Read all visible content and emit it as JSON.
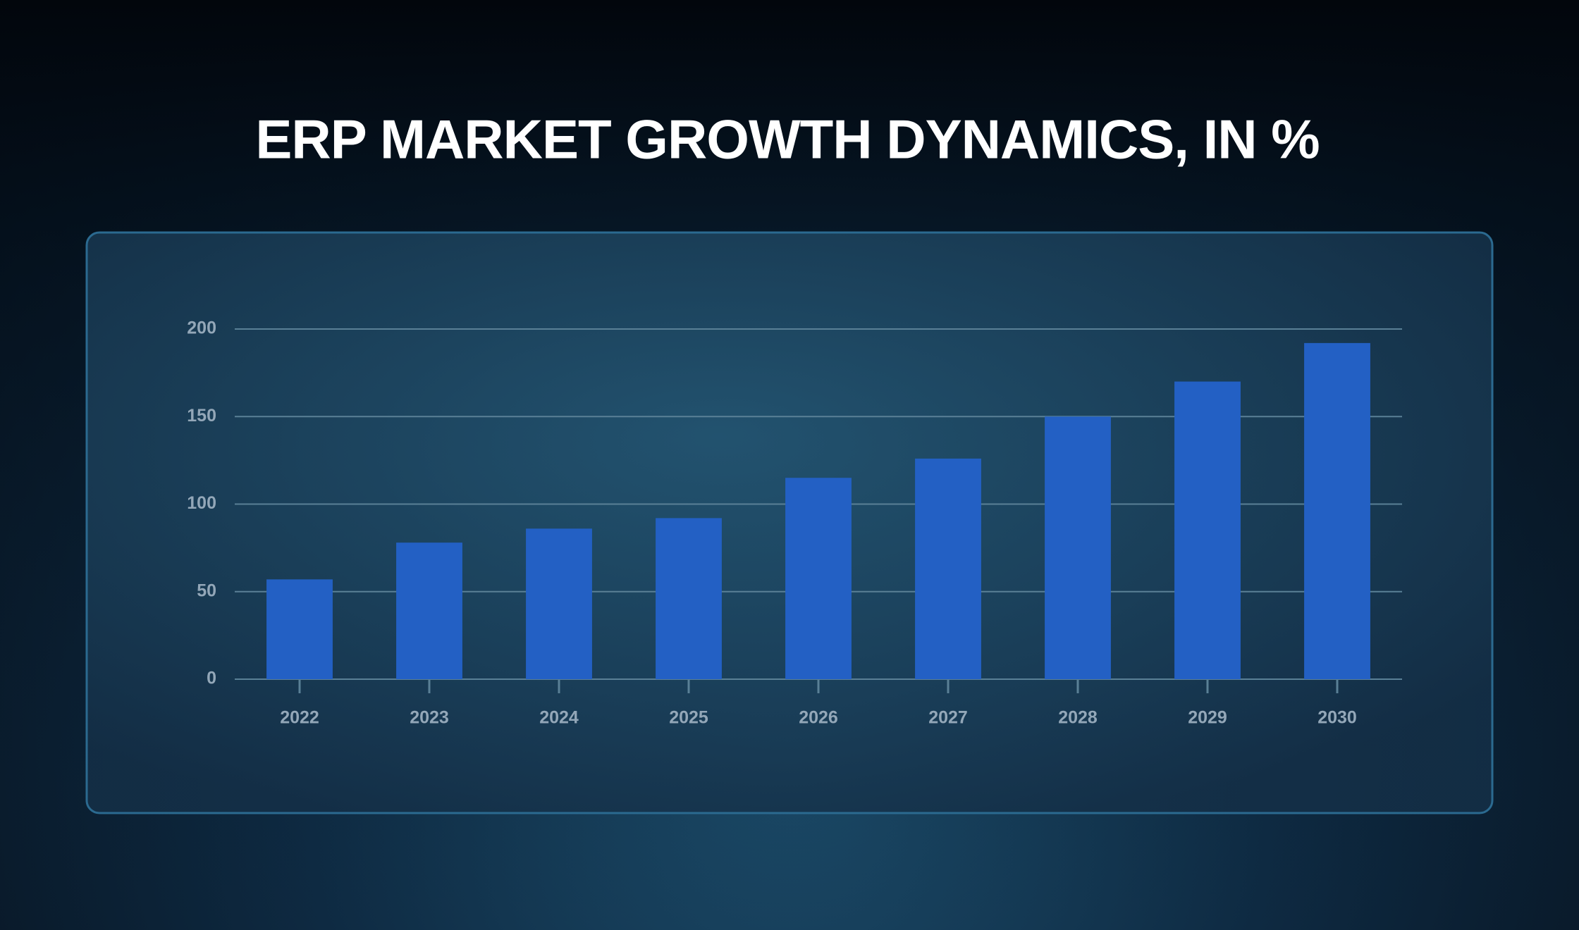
{
  "chart_data": {
    "type": "bar",
    "title": "ERP MARKET GROWTH DYNAMICS, IN %",
    "categories": [
      "2022",
      "2023",
      "2024",
      "2025",
      "2026",
      "2027",
      "2028",
      "2029",
      "2030"
    ],
    "values": [
      57,
      78,
      86,
      92,
      115,
      126,
      150,
      170,
      192
    ],
    "color": "#2360c4",
    "ylim": [
      0,
      200
    ],
    "yticks": [
      0,
      50,
      100,
      150,
      200
    ],
    "grid": true
  }
}
